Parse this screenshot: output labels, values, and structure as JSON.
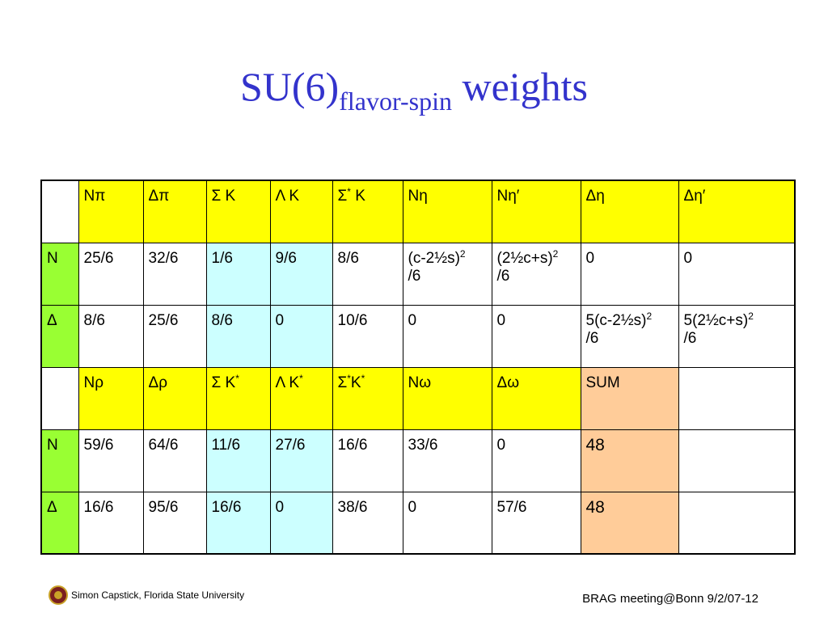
{
  "title": {
    "main": "SU(6)",
    "sub": "flavor-spin",
    "tail": "weights"
  },
  "table": {
    "rows": [
      [
        null,
        "Nπ",
        "Δπ",
        "Σ K",
        "Λ K",
        [
          "Σ",
          {
            "sup": "*"
          },
          " K"
        ],
        "Nη",
        "Nη′",
        "Δη",
        "Δη′"
      ],
      [
        "N",
        "25/6",
        "32/6",
        "1/6",
        "9/6",
        "8/6",
        [
          "(c-2½s)",
          {
            "sup": "2"
          },
          "/6"
        ],
        [
          "(2½c+s)",
          {
            "sup": "2"
          },
          "/6"
        ],
        "0",
        "0"
      ],
      [
        "Δ",
        "8/6",
        "25/6",
        "8/6",
        "0",
        "10/6",
        "0",
        "0",
        [
          "5(c-2½s)",
          {
            "sup": "2"
          },
          "/6"
        ],
        [
          "5(2½c+s)",
          {
            "sup": "2"
          },
          "/6"
        ]
      ],
      [
        null,
        "Nρ",
        "Δρ",
        [
          "Σ K",
          {
            "sup": "*"
          }
        ],
        [
          "Λ K",
          {
            "sup": "*"
          }
        ],
        [
          "Σ",
          {
            "sup": "*"
          },
          "K",
          {
            "sup": "*"
          }
        ],
        "Nω",
        "Δω",
        "SUM",
        null
      ],
      [
        "N",
        "59/6",
        "64/6",
        "11/6",
        "27/6",
        "16/6",
        "33/6",
        "0",
        "48",
        null
      ],
      [
        "Δ",
        "16/6",
        "95/6",
        "16/6",
        "0",
        "38/6",
        "0",
        "57/6",
        "48",
        null
      ]
    ]
  },
  "footer": {
    "author": "Simon Capstick, Florida State University",
    "meeting": "BRAG meeting@Bonn 9/2/07-12"
  }
}
